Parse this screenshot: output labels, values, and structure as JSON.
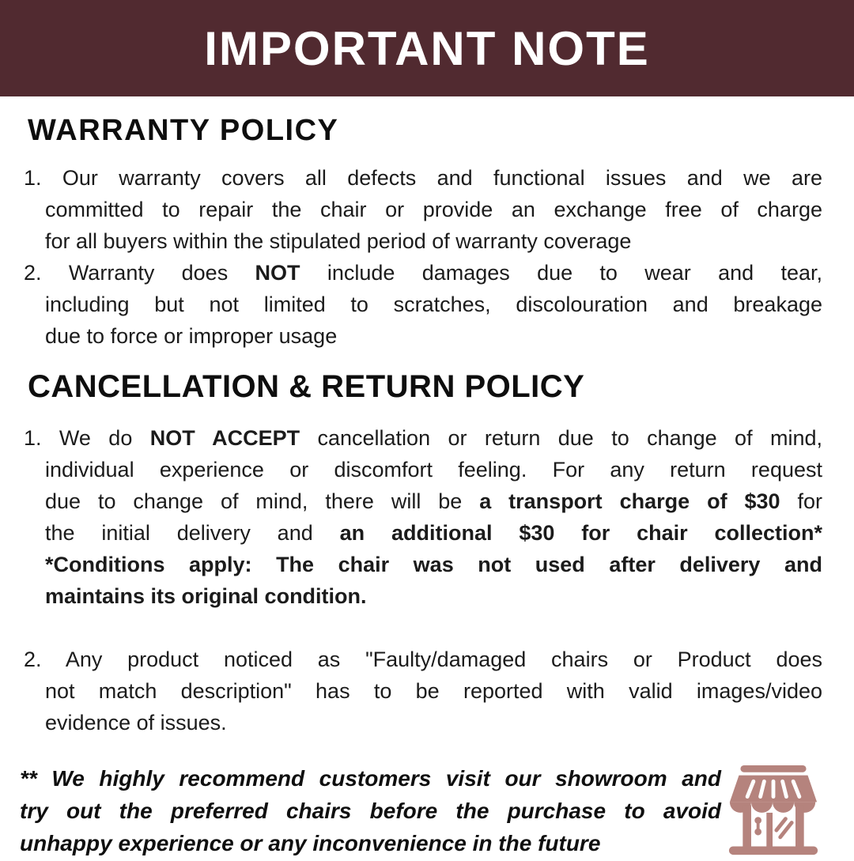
{
  "banner": {
    "title": "IMPORTANT NOTE"
  },
  "colors": {
    "banner_bg": "#512a30",
    "banner_fg": "#ffffff",
    "text": "#1b1b1b",
    "icon": "#b5837d",
    "page_bg": "#ffffff"
  },
  "sections": [
    {
      "heading": "WARRANTY POLICY",
      "items": [
        {
          "number": "1.",
          "lines": [
            [
              {
                "t": "1. "
              },
              {
                "t": "Our warranty covers all defects and functional issues and we are"
              }
            ],
            [
              {
                "t": "committed to repair the chair or provide an exchange free of charge"
              }
            ],
            [
              {
                "t": "for all buyers within the stipulated period of warranty coverage"
              }
            ]
          ]
        },
        {
          "number": "2.",
          "lines": [
            [
              {
                "t": "2. "
              },
              {
                "t": "Warranty does "
              },
              {
                "t": "NOT",
                "b": true
              },
              {
                "t": " include damages due to wear and tear,"
              }
            ],
            [
              {
                "t": "including but not limited to scratches, discolouration and breakage"
              }
            ],
            [
              {
                "t": "due to force or improper usage"
              }
            ]
          ]
        }
      ]
    },
    {
      "heading": "CANCELLATION & RETURN POLICY",
      "items": [
        {
          "number": "1.",
          "lines": [
            [
              {
                "t": "1. "
              },
              {
                "t": "We do "
              },
              {
                "t": "NOT ACCEPT",
                "b": true
              },
              {
                "t": " cancellation or return due to change of mind,"
              }
            ],
            [
              {
                "t": "individual experience or discomfort feeling. For any return request"
              }
            ],
            [
              {
                "t": "due to change of mind, there will be "
              },
              {
                "t": "a transport charge of $30",
                "b": true
              },
              {
                "t": " for"
              }
            ],
            [
              {
                "t": "the initial delivery and "
              },
              {
                "t": "an additional $30 for chair collection*",
                "b": true
              }
            ],
            [
              {
                "t": "*Conditions apply: The chair was not used after delivery and",
                "b": true
              }
            ],
            [
              {
                "t": "maintains its original condition.",
                "b": true
              }
            ]
          ]
        },
        {
          "number": "2.",
          "lines": [
            [
              {
                "t": "2. "
              },
              {
                "t": "Any product noticed as \"Faulty/damaged chairs or Product does"
              }
            ],
            [
              {
                "t": "not match description\" has to be reported with valid images/video"
              }
            ],
            [
              {
                "t": "evidence of issues."
              }
            ]
          ]
        }
      ]
    }
  ],
  "footnote": {
    "lines": [
      [
        {
          "t": "** We highly recommend customers visit our showroom and"
        }
      ],
      [
        {
          "t": "try out the preferred chairs before the purchase to avoid"
        }
      ],
      [
        {
          "t": "unhappy experience or any inconvenience in the future"
        }
      ]
    ]
  },
  "icon": {
    "name": "storefront-icon"
  }
}
